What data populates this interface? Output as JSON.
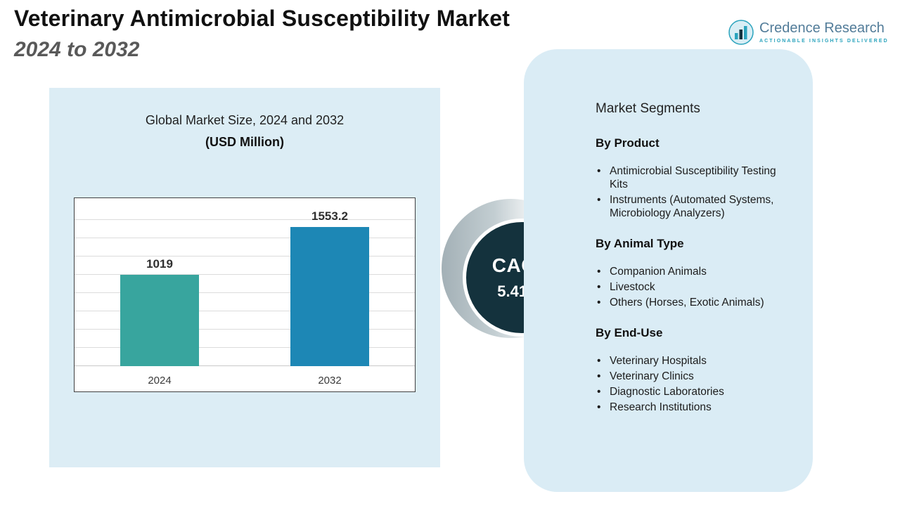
{
  "header": {
    "title": "Veterinary Antimicrobial Susceptibility Market",
    "period": "2024 to 2032"
  },
  "brand": {
    "name": "Credence Research",
    "tagline": "ACTIONABLE INSIGHTS DELIVERED",
    "accent_color": "#2aa3bd",
    "name_color": "#527c99"
  },
  "chart_data": {
    "type": "bar",
    "title": "Global Market Size, 2024 and 2032",
    "subtitle": "(USD Million)",
    "categories": [
      "2024",
      "2032"
    ],
    "values": [
      1019,
      1553.2
    ],
    "value_labels": [
      "1019",
      "1553.2"
    ],
    "ylim": [
      0,
      1800
    ],
    "grid": true,
    "legend": "none",
    "bar_colors": [
      "#38a59e",
      "#1d87b5"
    ],
    "plot_bg": "#ffffff",
    "panel_bg": "#dcedf5"
  },
  "cagr": {
    "label": "CAGR",
    "value": "5.41",
    "suffix": "%",
    "circle_color": "#14323d"
  },
  "segments": {
    "title": "Market Segments",
    "panel_bg": "#daecf5",
    "groups": [
      {
        "heading": "By Product",
        "items": [
          "Antimicrobial Susceptibility Testing Kits",
          "Instruments (Automated Systems, Microbiology Analyzers)"
        ]
      },
      {
        "heading": "By Animal Type",
        "items": [
          "Companion Animals",
          "Livestock",
          "Others (Horses, Exotic Animals)"
        ]
      },
      {
        "heading": "By End-Use",
        "items": [
          "Veterinary Hospitals",
          "Veterinary Clinics",
          "Diagnostic Laboratories",
          "Research Institutions"
        ]
      }
    ]
  }
}
